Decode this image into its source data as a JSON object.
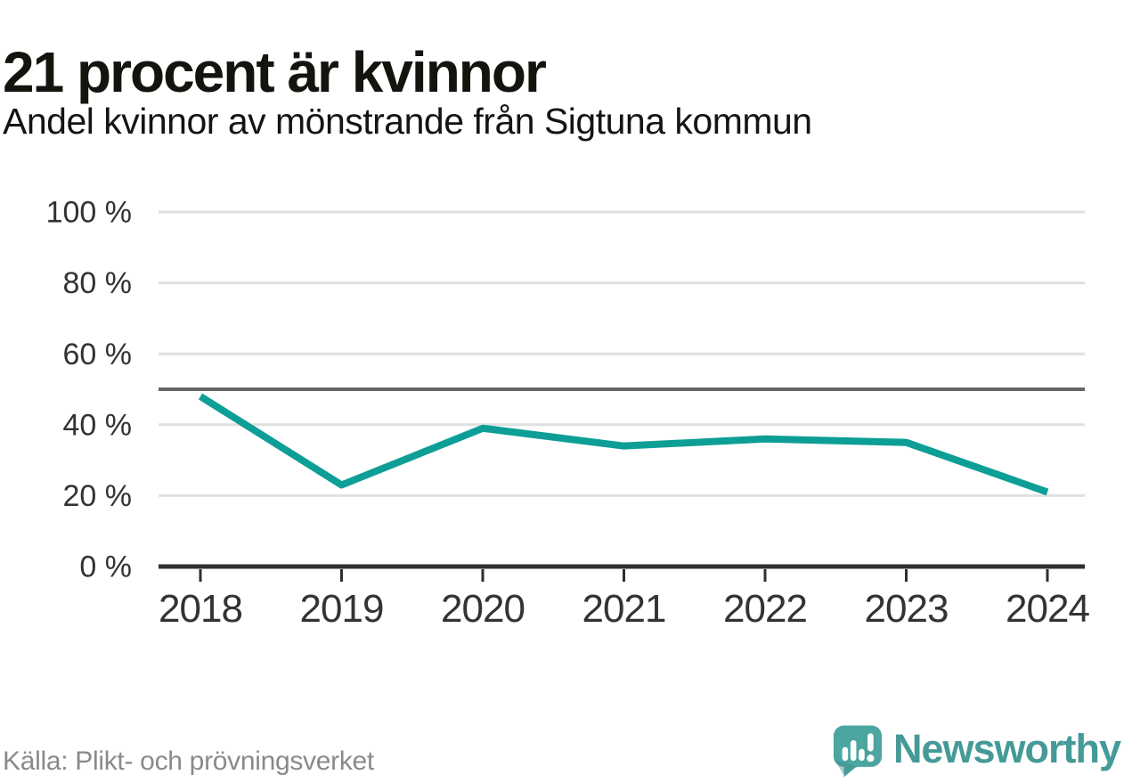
{
  "header": {
    "title": "21 procent är kvinnor",
    "subtitle": "Andel kvinnor av mönstrande från Sigtuna kommun"
  },
  "chart_data": {
    "type": "line",
    "title": "21 procent är kvinnor",
    "subtitle": "Andel kvinnor av mönstrande från Sigtuna kommun",
    "x": [
      "2018",
      "2019",
      "2020",
      "2021",
      "2022",
      "2023",
      "2024"
    ],
    "series": [
      {
        "name": "Andel kvinnor av mönstrande",
        "values": [
          48,
          23,
          39,
          34,
          36,
          35,
          21
        ]
      }
    ],
    "ylim": [
      0,
      100
    ],
    "y_ticks": [
      0,
      20,
      40,
      60,
      80,
      100
    ],
    "y_tick_labels": [
      "0 %",
      "20 %",
      "40 %",
      "60 %",
      "80 %",
      "100 %"
    ],
    "reference_line": 50,
    "grid": true,
    "legend": "none",
    "colors": {
      "line": "#0d9e96",
      "grid": "#e0e0e0",
      "reference_line": "#666666",
      "axis": "#2f2f2f",
      "tick_label": "#333333"
    }
  },
  "footer": {
    "source": "Källa: Plikt- och prövningsverket",
    "brand": "Newsworthy",
    "brand_color": "#459a97",
    "logo_icon": "speech-bubble-bar-chart-exclamation"
  }
}
